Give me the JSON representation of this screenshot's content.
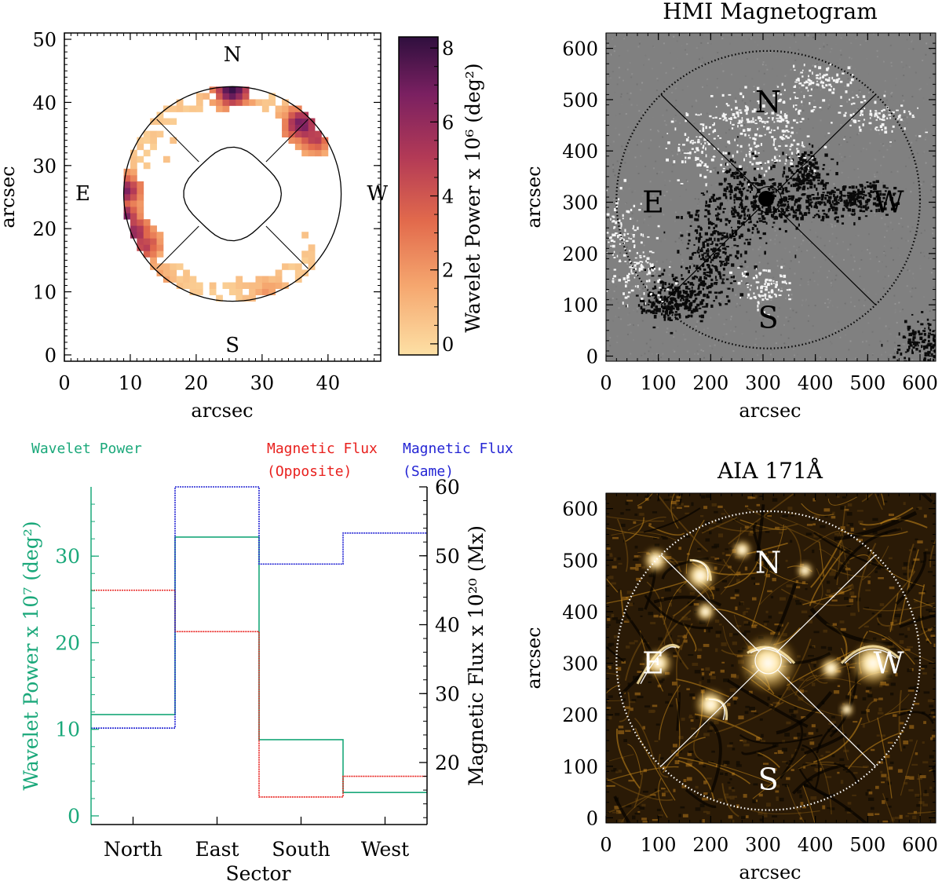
{
  "chart_data": [
    {
      "type": "heatmap",
      "panel": "wavelet-map",
      "xlabel": "arcsec",
      "ylabel": "arcsec",
      "xlim": [
        0,
        48
      ],
      "ylim": [
        -1,
        51
      ],
      "xticks": [
        0,
        10,
        20,
        30,
        40
      ],
      "yticks": [
        0,
        10,
        20,
        30,
        40,
        50
      ],
      "compass": {
        "north": "N",
        "south": "S",
        "east": "E",
        "west": "W"
      },
      "annulus": {
        "center": [
          25.5,
          25.5
        ],
        "outer_radius": [
          16.5,
          17
        ],
        "inner_radius": [
          7,
          7.2
        ]
      },
      "colorbar": {
        "label": "Wavelet Power x 10⁶ (deg²)",
        "range": [
          -0.3,
          8.3
        ],
        "ticks": [
          0,
          2,
          4,
          6,
          8
        ],
        "colors": [
          "#fde0a5",
          "#f5a66e",
          "#e26a4c",
          "#b33a56",
          "#7a2061",
          "#3b1249"
        ]
      },
      "hotspots": [
        {
          "x": 8.5,
          "y": 21.5,
          "v": 7.8
        },
        {
          "x": 9,
          "y": 26,
          "v": 6.2
        },
        {
          "x": 10.5,
          "y": 19.5,
          "v": 5.5
        },
        {
          "x": 12,
          "y": 17.5,
          "v": 4.5
        },
        {
          "x": 25.5,
          "y": 42.2,
          "v": 8.2
        },
        {
          "x": 36,
          "y": 36.5,
          "v": 6.5
        },
        {
          "x": 38,
          "y": 34.5,
          "v": 4.5
        },
        {
          "x": 13,
          "y": 11.5,
          "v": 3.0
        },
        {
          "x": 31,
          "y": 9.5,
          "v": 1.5
        }
      ]
    },
    {
      "type": "heatmap",
      "panel": "hmi-magnetogram",
      "title": "HMI Magnetogram",
      "xlabel": "arcsec",
      "ylabel": "arcsec",
      "xlim": [
        0,
        630
      ],
      "ylim": [
        -10,
        630
      ],
      "xticks": [
        0,
        100,
        200,
        300,
        400,
        500,
        600
      ],
      "yticks": [
        0,
        100,
        200,
        300,
        400,
        500,
        600
      ],
      "compass": {
        "north": "N",
        "south": "S",
        "east": "E",
        "west": "W"
      },
      "circle": {
        "center": [
          310,
          305
        ],
        "radius": 290
      }
    },
    {
      "type": "line",
      "panel": "sector-histogram",
      "title_left": "Wavelet Power",
      "title_mid": [
        "Magnetic Flux",
        "(Opposite)"
      ],
      "title_right": [
        "Magnetic Flux",
        "(Same)"
      ],
      "xlabel": "Sector",
      "categories": [
        "North",
        "East",
        "South",
        "West"
      ],
      "ylabel_left": "Wavelet Power x 10⁷ (deg²)",
      "ylabel_right": "Magnetic Flux x 10²⁰ (Mx)",
      "ylim_left": [
        -1,
        38
      ],
      "ylim_right": [
        11,
        60
      ],
      "yticks_left": [
        0,
        10,
        20,
        30
      ],
      "yticks_right": [
        20,
        30,
        40,
        50,
        60
      ],
      "series": [
        {
          "name": "Wavelet Power",
          "axis": "left",
          "color": "#1aa87a",
          "values": [
            11.7,
            32.2,
            8.8,
            2.7
          ]
        },
        {
          "name": "Magnetic Flux (Opposite)",
          "axis": "right",
          "color": "#e8201d",
          "values": [
            45,
            39,
            15,
            18
          ]
        },
        {
          "name": "Magnetic Flux (Same)",
          "axis": "right",
          "color": "#2425d4",
          "values": [
            25,
            60,
            48.8,
            53.3
          ]
        }
      ]
    },
    {
      "type": "heatmap",
      "panel": "aia-171",
      "title": "AIA 171Å",
      "xlabel": "arcsec",
      "ylabel": "arcsec",
      "xlim": [
        0,
        630
      ],
      "ylim": [
        -10,
        630
      ],
      "xticks": [
        0,
        100,
        200,
        300,
        400,
        500,
        600
      ],
      "yticks": [
        0,
        100,
        200,
        300,
        400,
        500,
        600
      ],
      "compass": {
        "north": "N",
        "south": "S",
        "east": "E",
        "west": "W"
      },
      "circle": {
        "center": [
          310,
          305
        ],
        "radius": 290
      }
    }
  ]
}
